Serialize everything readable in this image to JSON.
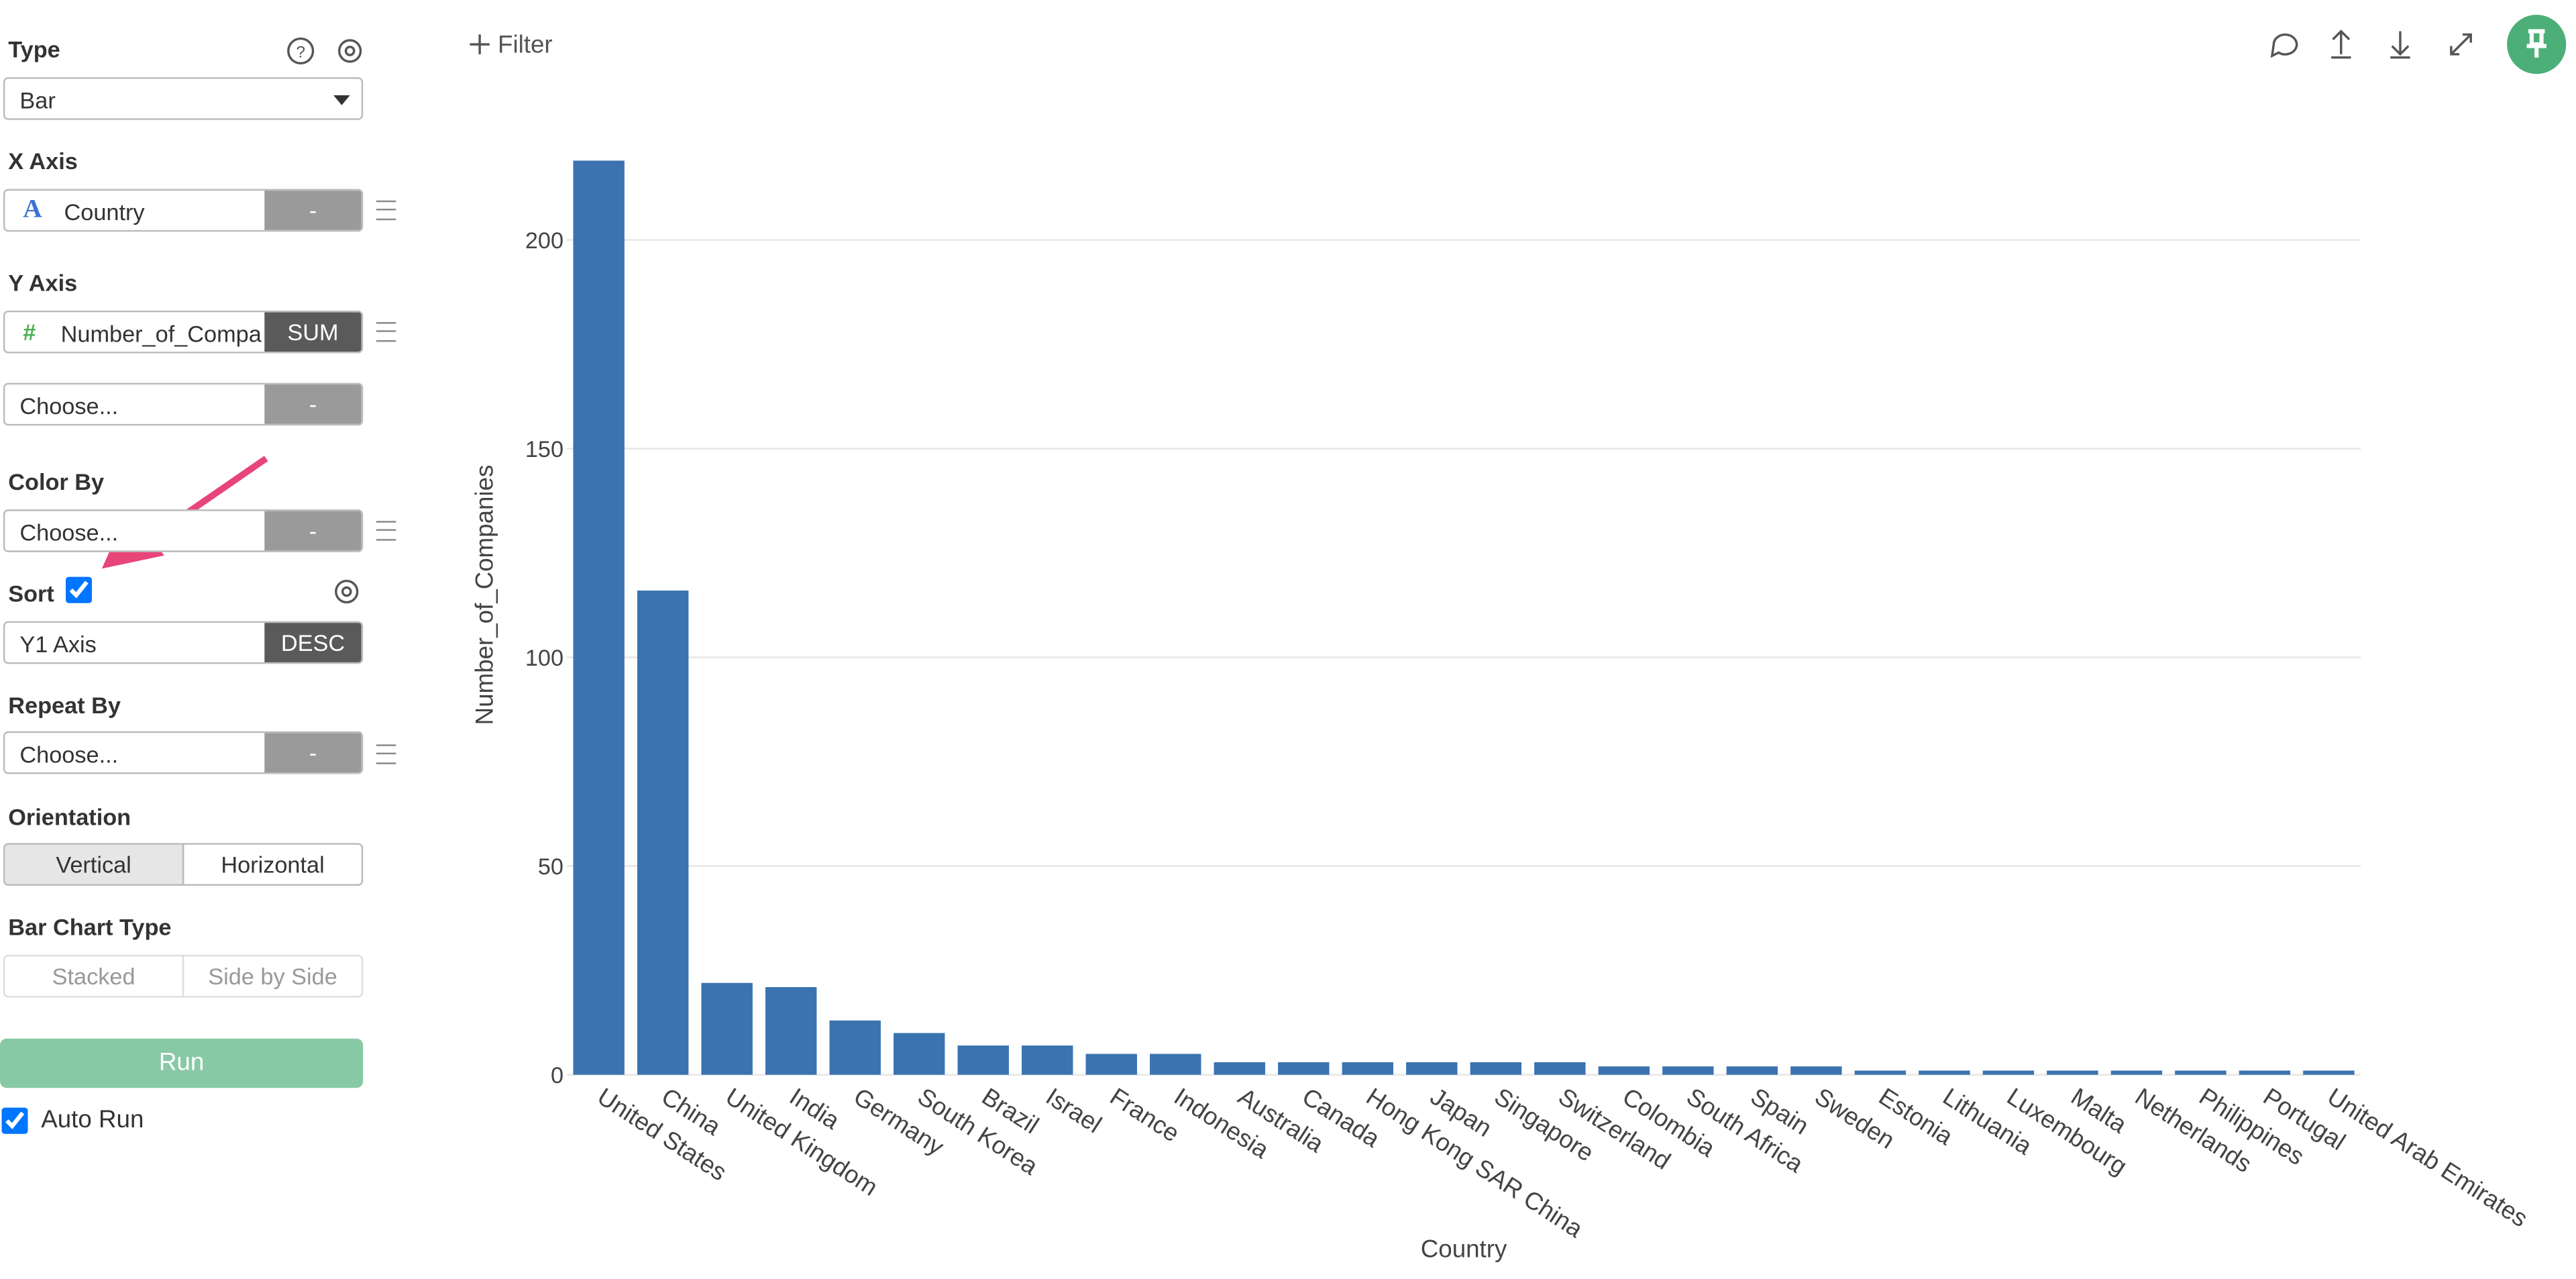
{
  "sidebar": {
    "type_label": "Type",
    "type_value": "Bar",
    "x_axis_label": "X Axis",
    "x_axis_icon": "A",
    "x_axis_field": "Country",
    "x_axis_agg": "-",
    "y_axis_label": "Y Axis",
    "y_axis_icon": "#",
    "y_axis_field": "Number_of_Compa",
    "y_axis_agg": "SUM",
    "y_axis2_field": "Choose...",
    "y_axis2_agg": "-",
    "color_by_label": "Color By",
    "color_by_field": "Choose...",
    "color_by_agg": "-",
    "sort_label": "Sort",
    "sort_field": "Y1 Axis",
    "sort_order": "DESC",
    "repeat_by_label": "Repeat By",
    "repeat_by_field": "Choose...",
    "repeat_by_agg": "-",
    "orientation_label": "Orientation",
    "orientation_options": [
      "Vertical",
      "Horizontal"
    ],
    "bar_type_label": "Bar Chart Type",
    "bar_type_options": [
      "Stacked",
      "Side by Side"
    ],
    "run": "Run",
    "auto_run": "Auto Run"
  },
  "toolbar": {
    "filter": "Filter"
  },
  "chart_data": {
    "type": "bar",
    "x_label": "Country",
    "y_label": "Number_of_Companies",
    "categories": [
      "United States",
      "China",
      "United Kingdom",
      "India",
      "Germany",
      "South Korea",
      "Brazil",
      "Israel",
      "France",
      "Indonesia",
      "Australia",
      "Canada",
      "Hong Kong SAR China",
      "Japan",
      "Singapore",
      "Switzerland",
      "Colombia",
      "South Africa",
      "Spain",
      "Sweden",
      "Estonia",
      "Lithuania",
      "Luxembourg",
      "Malta",
      "Netherlands",
      "Philippines",
      "Portugal",
      "United Arab Emirates"
    ],
    "values": [
      219,
      116,
      22,
      21,
      13,
      10,
      7,
      7,
      5,
      5,
      3,
      3,
      3,
      3,
      3,
      3,
      2,
      2,
      2,
      2,
      1,
      1,
      1,
      1,
      1,
      1,
      1,
      1
    ],
    "color": "#3b73b0",
    "ylim": [
      0,
      220
    ],
    "yticks": [
      0,
      50,
      100,
      150,
      200
    ],
    "grid": true
  }
}
